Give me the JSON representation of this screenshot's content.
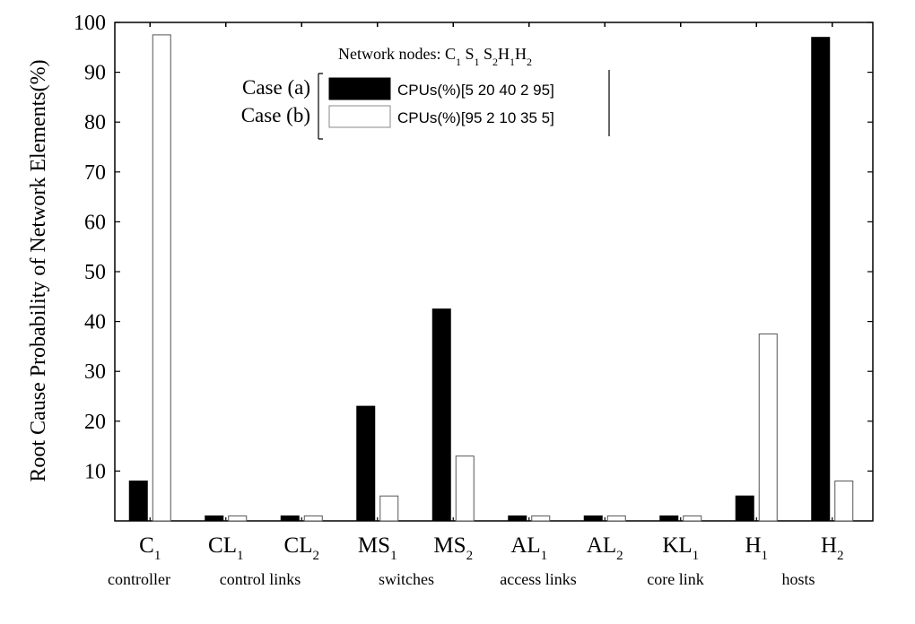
{
  "chart_data": {
    "type": "bar",
    "title": "",
    "xlabel": "",
    "ylabel": "Root Cause Probability of Network Elements(%)",
    "ylim": [
      0,
      100
    ],
    "yticks": [
      "10",
      "20",
      "30",
      "40",
      "50",
      "60",
      "70",
      "80",
      "90",
      "100"
    ],
    "categories": [
      {
        "main": "C",
        "sub": "1"
      },
      {
        "main": "CL",
        "sub": "1"
      },
      {
        "main": "CL",
        "sub": "2"
      },
      {
        "main": "MS",
        "sub": "1"
      },
      {
        "main": "MS",
        "sub": "2"
      },
      {
        "main": "AL",
        "sub": "1"
      },
      {
        "main": "AL",
        "sub": "2"
      },
      {
        "main": "KL",
        "sub": "1"
      },
      {
        "main": "H",
        "sub": "1"
      },
      {
        "main": "H",
        "sub": "2"
      }
    ],
    "group_labels": [
      "controller",
      "control links",
      "switches",
      "access links",
      "core link",
      "hosts"
    ],
    "series": [
      {
        "name": "CPUs(%)[5 20 40 2 95]",
        "case": "Case (a)",
        "color": "#000000",
        "values": [
          8,
          1,
          1,
          23,
          42.5,
          1,
          1,
          1,
          5,
          97
        ]
      },
      {
        "name": "CPUs(%)[95 2 10 35 5]",
        "case": "Case (b)",
        "color": "#ffffff",
        "values": [
          97.5,
          1,
          1,
          5,
          13,
          1,
          1,
          1,
          37.5,
          8
        ]
      }
    ],
    "legend": {
      "title": {
        "prefix": "Network nodes:",
        "nodes": [
          {
            "main": "C",
            "sub": "1"
          },
          {
            "main": "S",
            "sub": "1"
          },
          {
            "main": "S",
            "sub": "2"
          },
          {
            "main": "H",
            "sub": "1"
          },
          {
            "main": "H",
            "sub": "2"
          }
        ]
      },
      "position": "top-center"
    },
    "grid": false
  }
}
